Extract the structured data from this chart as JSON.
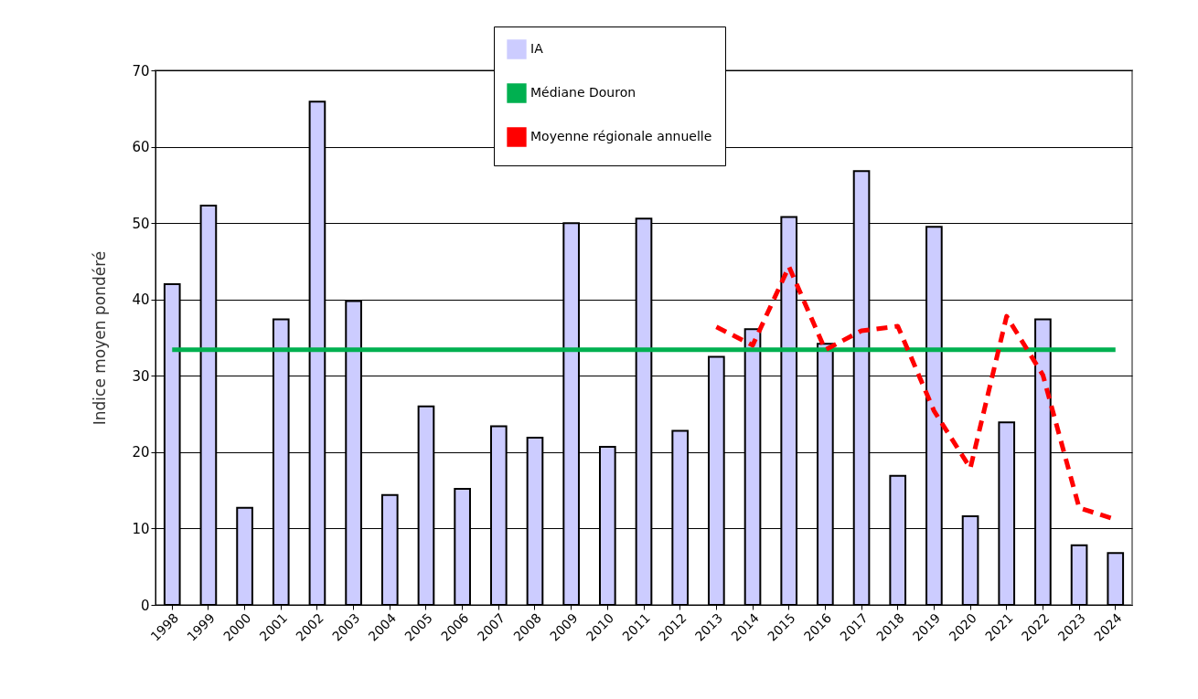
{
  "chart_data": {
    "type": "bar",
    "ylabel": "Indice moyen pondéré",
    "categories": [
      "1998",
      "1999",
      "2000",
      "2001",
      "2002",
      "2003",
      "2004",
      "2005",
      "2006",
      "2007",
      "2008",
      "2009",
      "2010",
      "2011",
      "2012",
      "2013",
      "2014",
      "2015",
      "2016",
      "2017",
      "2018",
      "2019",
      "2020",
      "2021",
      "2022",
      "2023",
      "2024"
    ],
    "series": [
      {
        "name": "IA",
        "color": "#ccccff",
        "values": [
          42.0,
          52.3,
          12.7,
          37.4,
          65.9,
          39.8,
          14.4,
          26.0,
          15.2,
          23.4,
          21.9,
          50.0,
          20.7,
          50.6,
          22.8,
          32.5,
          36.1,
          50.8,
          34.2,
          56.8,
          16.9,
          49.5,
          11.6,
          23.9,
          37.4,
          7.8,
          6.8
        ]
      },
      {
        "name": "Médiane Douron",
        "type": "line",
        "color": "#00b050",
        "line_style": "solid",
        "values": [
          33.4,
          33.4,
          33.4,
          33.4,
          33.4,
          33.4,
          33.4,
          33.4,
          33.4,
          33.4,
          33.4,
          33.4,
          33.4,
          33.4,
          33.4,
          33.4,
          33.4,
          33.4,
          33.4,
          33.4,
          33.4,
          33.4,
          33.4,
          33.4,
          33.4,
          33.4,
          33.4
        ]
      },
      {
        "name": "Moyenne régionale annuelle",
        "type": "line",
        "color": "#ff0000",
        "line_style": "dashed",
        "values": [
          null,
          null,
          null,
          null,
          null,
          null,
          null,
          null,
          null,
          null,
          null,
          null,
          null,
          null,
          null,
          36.4,
          34.0,
          44.3,
          33.4,
          35.9,
          36.5,
          25.4,
          17.9,
          37.8,
          30.1,
          12.7,
          11.2
        ]
      }
    ],
    "ylim": [
      0,
      70
    ],
    "yticks": [
      0,
      10,
      20,
      30,
      40,
      50,
      60,
      70
    ],
    "grid": "y",
    "legend": "top"
  }
}
